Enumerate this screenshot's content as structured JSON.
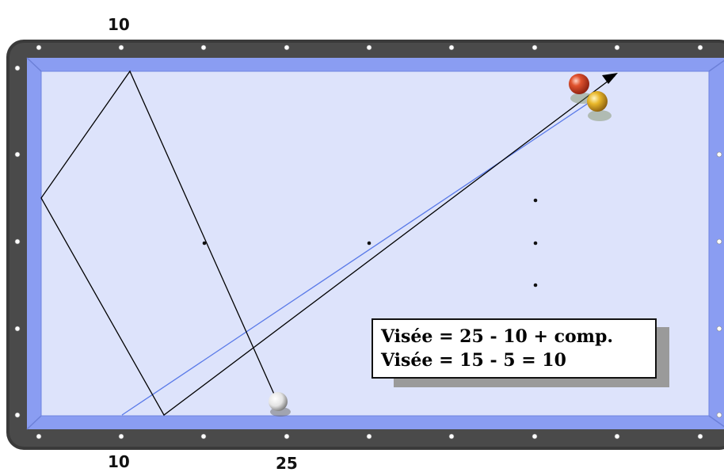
{
  "diagram": {
    "labels": {
      "top_diamond": "10",
      "bottom_left_diamond": "10",
      "bottom_right_diamond": "25"
    },
    "formula": {
      "line1": "Visée = 25 - 10 + comp.",
      "line2": "Visée = 15 - 5 = 10"
    },
    "colors": {
      "rail": "#3a3a3a",
      "cushion": "#8a9df2",
      "cloth": "#dde3fb",
      "cue_path": "#000000",
      "aim_line": "#5a7ae8",
      "red_ball": "#d8452a",
      "yellow_ball": "#e8b72a",
      "white_ball": "#f2f2f2"
    }
  }
}
